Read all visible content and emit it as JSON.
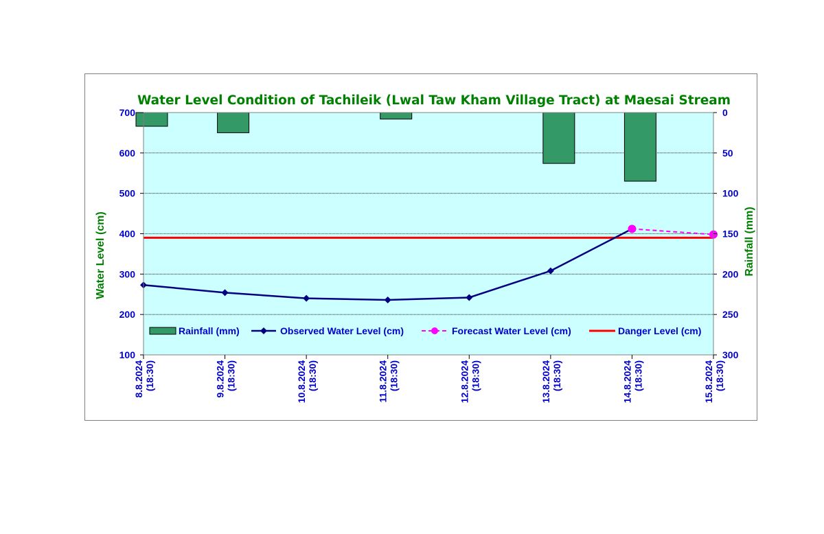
{
  "chart_data": {
    "type": "bar+line",
    "title": "Water Level Condition of Tachileik (Lwal Taw Kham Village Tract) at Maesai Stream",
    "categories": [
      {
        "date": "8.8.2024",
        "time": "(18:30)"
      },
      {
        "date": "9.8.2024",
        "time": "(18:30)"
      },
      {
        "date": "10.8.2024",
        "time": "(18:30)"
      },
      {
        "date": "11.8.2024",
        "time": "(18:30)"
      },
      {
        "date": "12.8.2024",
        "time": "(18:30)"
      },
      {
        "date": "13.8.2024",
        "time": "(18:30)"
      },
      {
        "date": "14.8.2024",
        "time": "(18:30)"
      },
      {
        "date": "15.8.2024",
        "time": "(18:30)"
      }
    ],
    "y_left": {
      "label": "Water Level (cm)",
      "min": 100,
      "max": 700,
      "ticks": [
        "700",
        "600",
        "500",
        "400",
        "300",
        "200",
        "100"
      ]
    },
    "y_right": {
      "label": "Rainfall (mm)",
      "min": 0,
      "max": 300,
      "reversed": true,
      "ticks": [
        "0",
        "50",
        "100",
        "150",
        "200",
        "250",
        "300"
      ]
    },
    "grid": true,
    "legend_position": "bottom-inside",
    "series": [
      {
        "name": "Rainfall (mm)",
        "kind": "bar",
        "axis": "right",
        "color": "#339966",
        "values": [
          17,
          25,
          0,
          8,
          0,
          63,
          85,
          null
        ]
      },
      {
        "name": "Observed Water Level (cm)",
        "kind": "line",
        "axis": "left",
        "color": "#000080",
        "marker": "diamond",
        "values": [
          273,
          254,
          240,
          236,
          242,
          308,
          412,
          null
        ]
      },
      {
        "name": "Forecast Water Level (cm)",
        "kind": "line-dashed",
        "axis": "left",
        "color": "#ff00ff",
        "marker": "circle",
        "values": [
          null,
          null,
          null,
          null,
          null,
          null,
          412,
          398
        ]
      },
      {
        "name": "Danger Level (cm)",
        "kind": "hline",
        "axis": "left",
        "color": "#ff0000",
        "value": 390
      }
    ],
    "colors": {
      "plot_bg": "#ccffff",
      "title": "#008000",
      "ticks": "#0000cc",
      "axis_label": "#008000"
    }
  }
}
